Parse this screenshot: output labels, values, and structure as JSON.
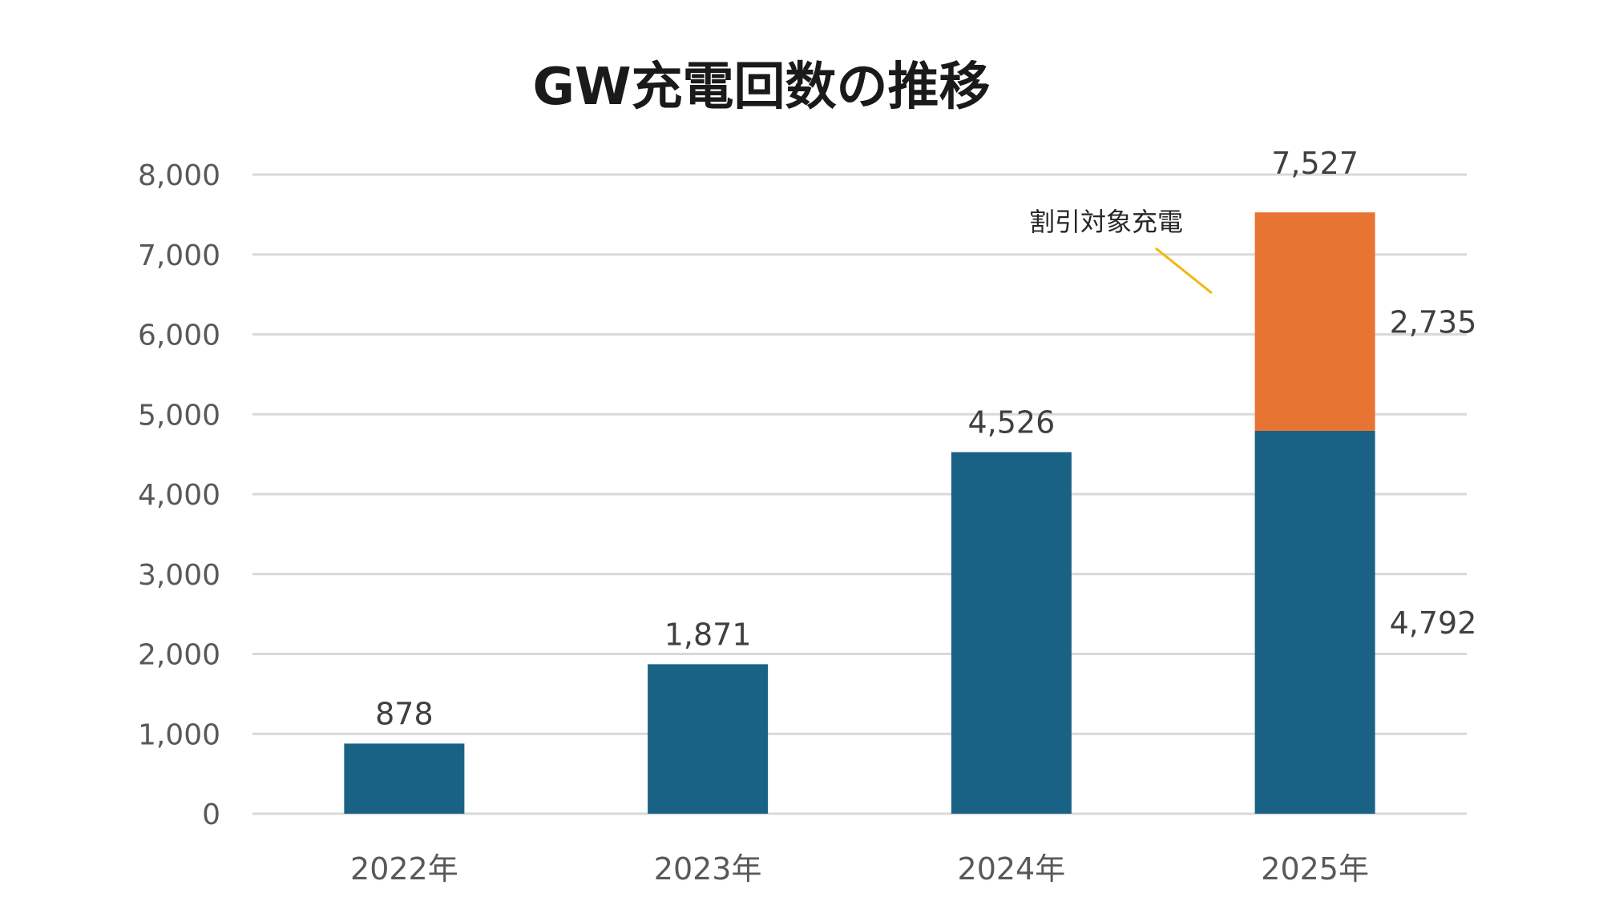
{
  "chart_data": {
    "type": "bar",
    "stacked": true,
    "title": "GW充電回数の推移",
    "xlabel": "",
    "ylabel": "",
    "ylim": [
      0,
      8000
    ],
    "yticks": [
      "0",
      "1,000",
      "2,000",
      "3,000",
      "4,000",
      "5,000",
      "6,000",
      "7,000",
      "8,000"
    ],
    "grid": true,
    "categories": [
      "2022年",
      "2023年",
      "2024年",
      "2025年"
    ],
    "series": [
      {
        "values": [
          878,
          1871,
          4526,
          4792
        ],
        "color": "#1a6285",
        "data_labels": [
          "878",
          "1,871",
          "4,526",
          "4,792"
        ]
      },
      {
        "name": "割引対象充電",
        "values": [
          0,
          0,
          0,
          2735
        ],
        "color": "#e87433",
        "data_labels": [
          "",
          "",
          "",
          "2,735"
        ]
      }
    ],
    "totals": [
      "",
      "",
      "",
      "7,527"
    ],
    "annotation": {
      "text": "割引対象充電",
      "leader_color": "#f2b705"
    }
  }
}
